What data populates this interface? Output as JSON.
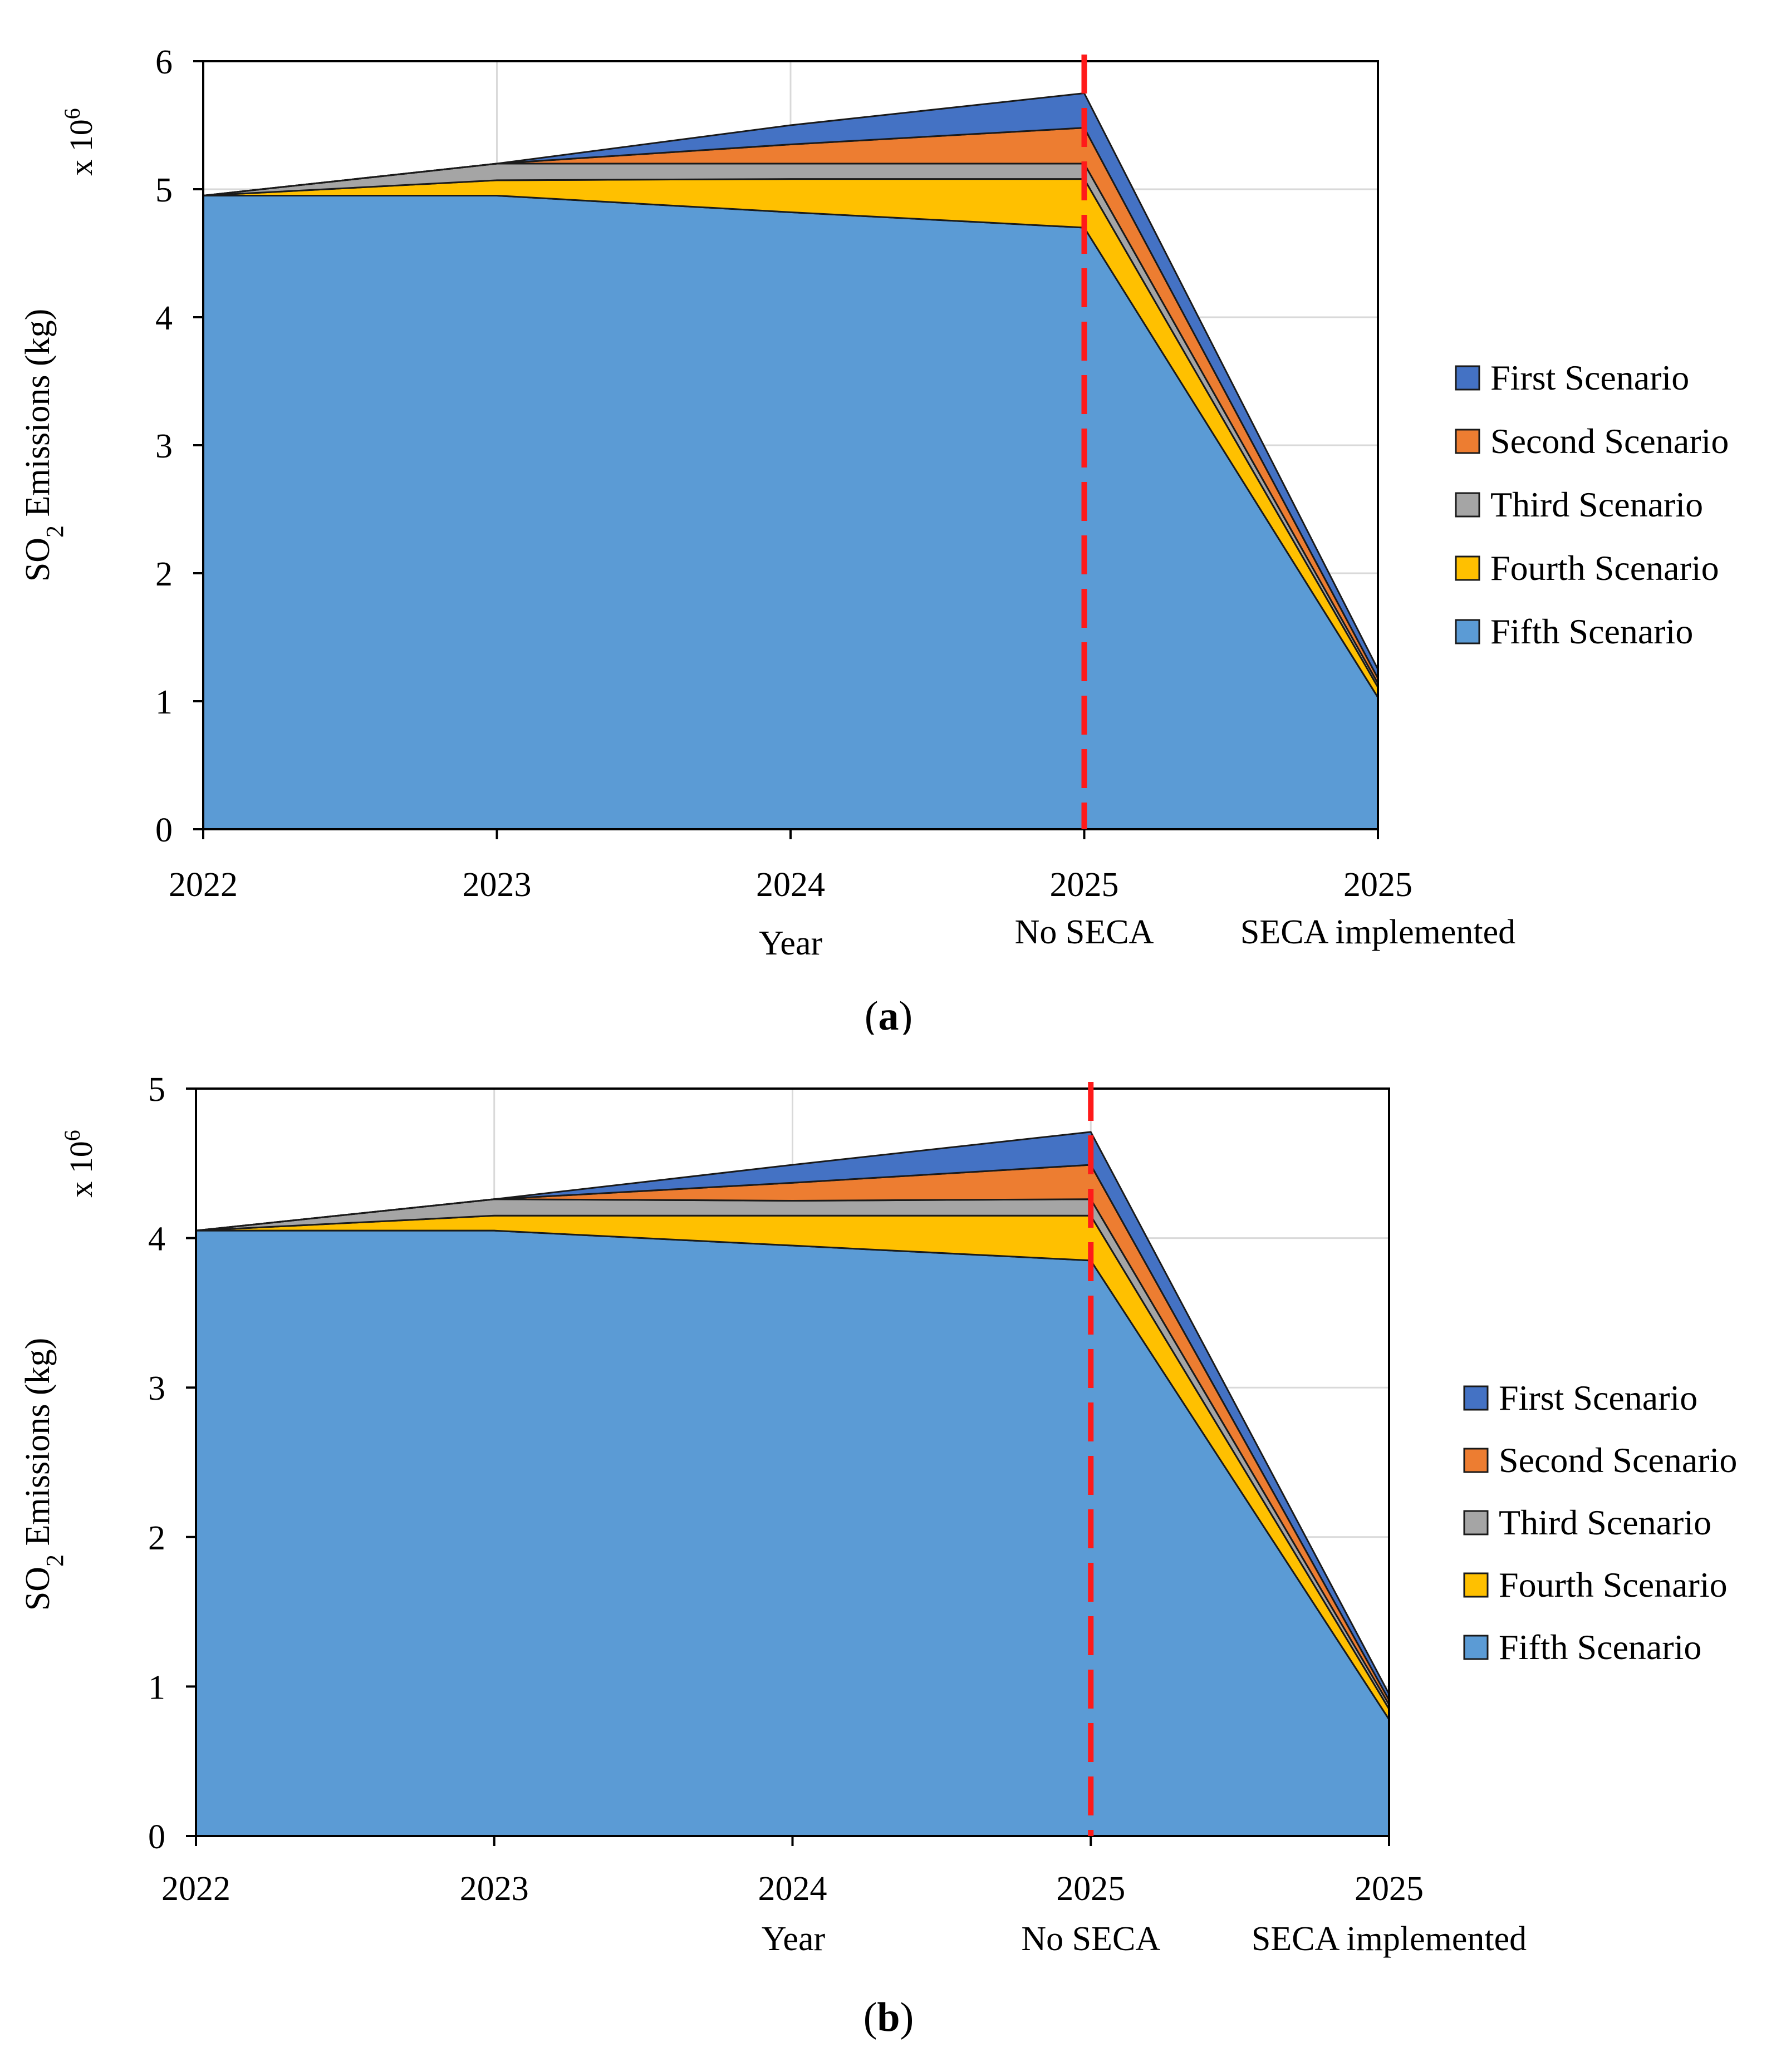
{
  "chart_data": [
    {
      "id": "a",
      "type": "area",
      "stacked": true,
      "panel_label": "a",
      "categories": [
        {
          "top": "2022",
          "bottom": ""
        },
        {
          "top": "2023",
          "bottom": ""
        },
        {
          "top": "2024",
          "bottom": ""
        },
        {
          "top": "2025",
          "bottom": "No SECA"
        },
        {
          "top": "2025",
          "bottom": "SECA implemented"
        }
      ],
      "xlabel": "Year",
      "ylabel_parts": [
        "SO",
        "2",
        " Emissions (kg)"
      ],
      "y_multiplier": {
        "base": "x 10",
        "exp": "6"
      },
      "ylim": [
        0,
        6
      ],
      "yticks": [
        0,
        1,
        2,
        3,
        4,
        5,
        6
      ],
      "grid": true,
      "divider_at_category": 3,
      "legend_position": "right",
      "series": [
        {
          "name": "Fifth Scenario",
          "color": "#5b9bd5",
          "values": [
            4.95,
            4.95,
            4.82,
            4.7,
            1.03
          ]
        },
        {
          "name": "Fourth Scenario",
          "color": "#ffc000",
          "values": [
            0.0,
            0.12,
            0.26,
            0.38,
            0.08
          ]
        },
        {
          "name": "Third Scenario",
          "color": "#a5a5a5",
          "values": [
            0.0,
            0.13,
            0.12,
            0.12,
            0.03
          ]
        },
        {
          "name": "Second Scenario",
          "color": "#ed7d31",
          "values": [
            0.0,
            0.0,
            0.15,
            0.28,
            0.04
          ]
        },
        {
          "name": "First Scenario",
          "color": "#4472c4",
          "values": [
            0.0,
            0.0,
            0.15,
            0.27,
            0.07
          ]
        }
      ]
    },
    {
      "id": "b",
      "type": "area",
      "stacked": true,
      "panel_label": "b",
      "categories": [
        {
          "top": "2022",
          "bottom": ""
        },
        {
          "top": "2023",
          "bottom": ""
        },
        {
          "top": "2024",
          "bottom": ""
        },
        {
          "top": "2025",
          "bottom": "No SECA"
        },
        {
          "top": "2025",
          "bottom": "SECA implemented"
        }
      ],
      "xlabel": "Year",
      "ylabel_parts": [
        "SO",
        "2",
        " Emissions (kg)"
      ],
      "y_multiplier": {
        "base": "x 10",
        "exp": "6"
      },
      "ylim": [
        0,
        5
      ],
      "yticks": [
        0,
        1,
        2,
        3,
        4,
        5
      ],
      "grid": true,
      "divider_at_category": 3,
      "legend_position": "right",
      "series": [
        {
          "name": "Fifth Scenario",
          "color": "#5b9bd5",
          "values": [
            4.05,
            4.05,
            3.95,
            3.85,
            0.78
          ]
        },
        {
          "name": "Fourth Scenario",
          "color": "#ffc000",
          "values": [
            0.0,
            0.1,
            0.2,
            0.3,
            0.07
          ]
        },
        {
          "name": "Third Scenario",
          "color": "#a5a5a5",
          "values": [
            0.0,
            0.11,
            0.1,
            0.11,
            0.03
          ]
        },
        {
          "name": "Second Scenario",
          "color": "#ed7d31",
          "values": [
            0.0,
            0.0,
            0.12,
            0.23,
            0.03
          ]
        },
        {
          "name": "First Scenario",
          "color": "#4472c4",
          "values": [
            0.0,
            0.0,
            0.12,
            0.22,
            0.04
          ]
        }
      ]
    }
  ]
}
